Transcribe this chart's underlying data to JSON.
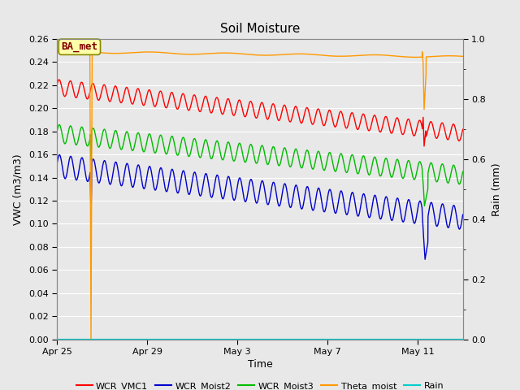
{
  "title": "Soil Moisture",
  "xlabel": "Time",
  "ylabel_left": "VWC (m3/m3)",
  "ylabel_right": "Rain (mm)",
  "ylim_left": [
    0.0,
    0.26
  ],
  "ylim_right": [
    0.0,
    1.0
  ],
  "yticks_left": [
    0.0,
    0.02,
    0.04,
    0.06,
    0.08,
    0.1,
    0.12,
    0.14,
    0.16,
    0.18,
    0.2,
    0.22,
    0.24,
    0.26
  ],
  "yticks_right": [
    0.0,
    0.2,
    0.4,
    0.6,
    0.8,
    1.0
  ],
  "xtick_labels": [
    "Apr 25",
    "Apr 29",
    "May 3",
    "May 7",
    "May 11"
  ],
  "xtick_days": [
    0,
    4,
    8,
    12,
    16
  ],
  "bg_color": "#e8e8e8",
  "grid_color": "#ffffff",
  "annotation_text": "BA_met",
  "annotation_box_color": "#ffffaa",
  "annotation_text_color": "#800000",
  "line_colors": {
    "WCR_VMC1": "#ff0000",
    "WCR_Moist2": "#0000cc",
    "WCR_Moist3": "#00bb00",
    "Theta_moist": "#ff9900",
    "Rain": "#00cccc"
  },
  "total_days": 18,
  "num_points": 2160,
  "spike1_day": 1.5,
  "spike2_day": 16.2
}
